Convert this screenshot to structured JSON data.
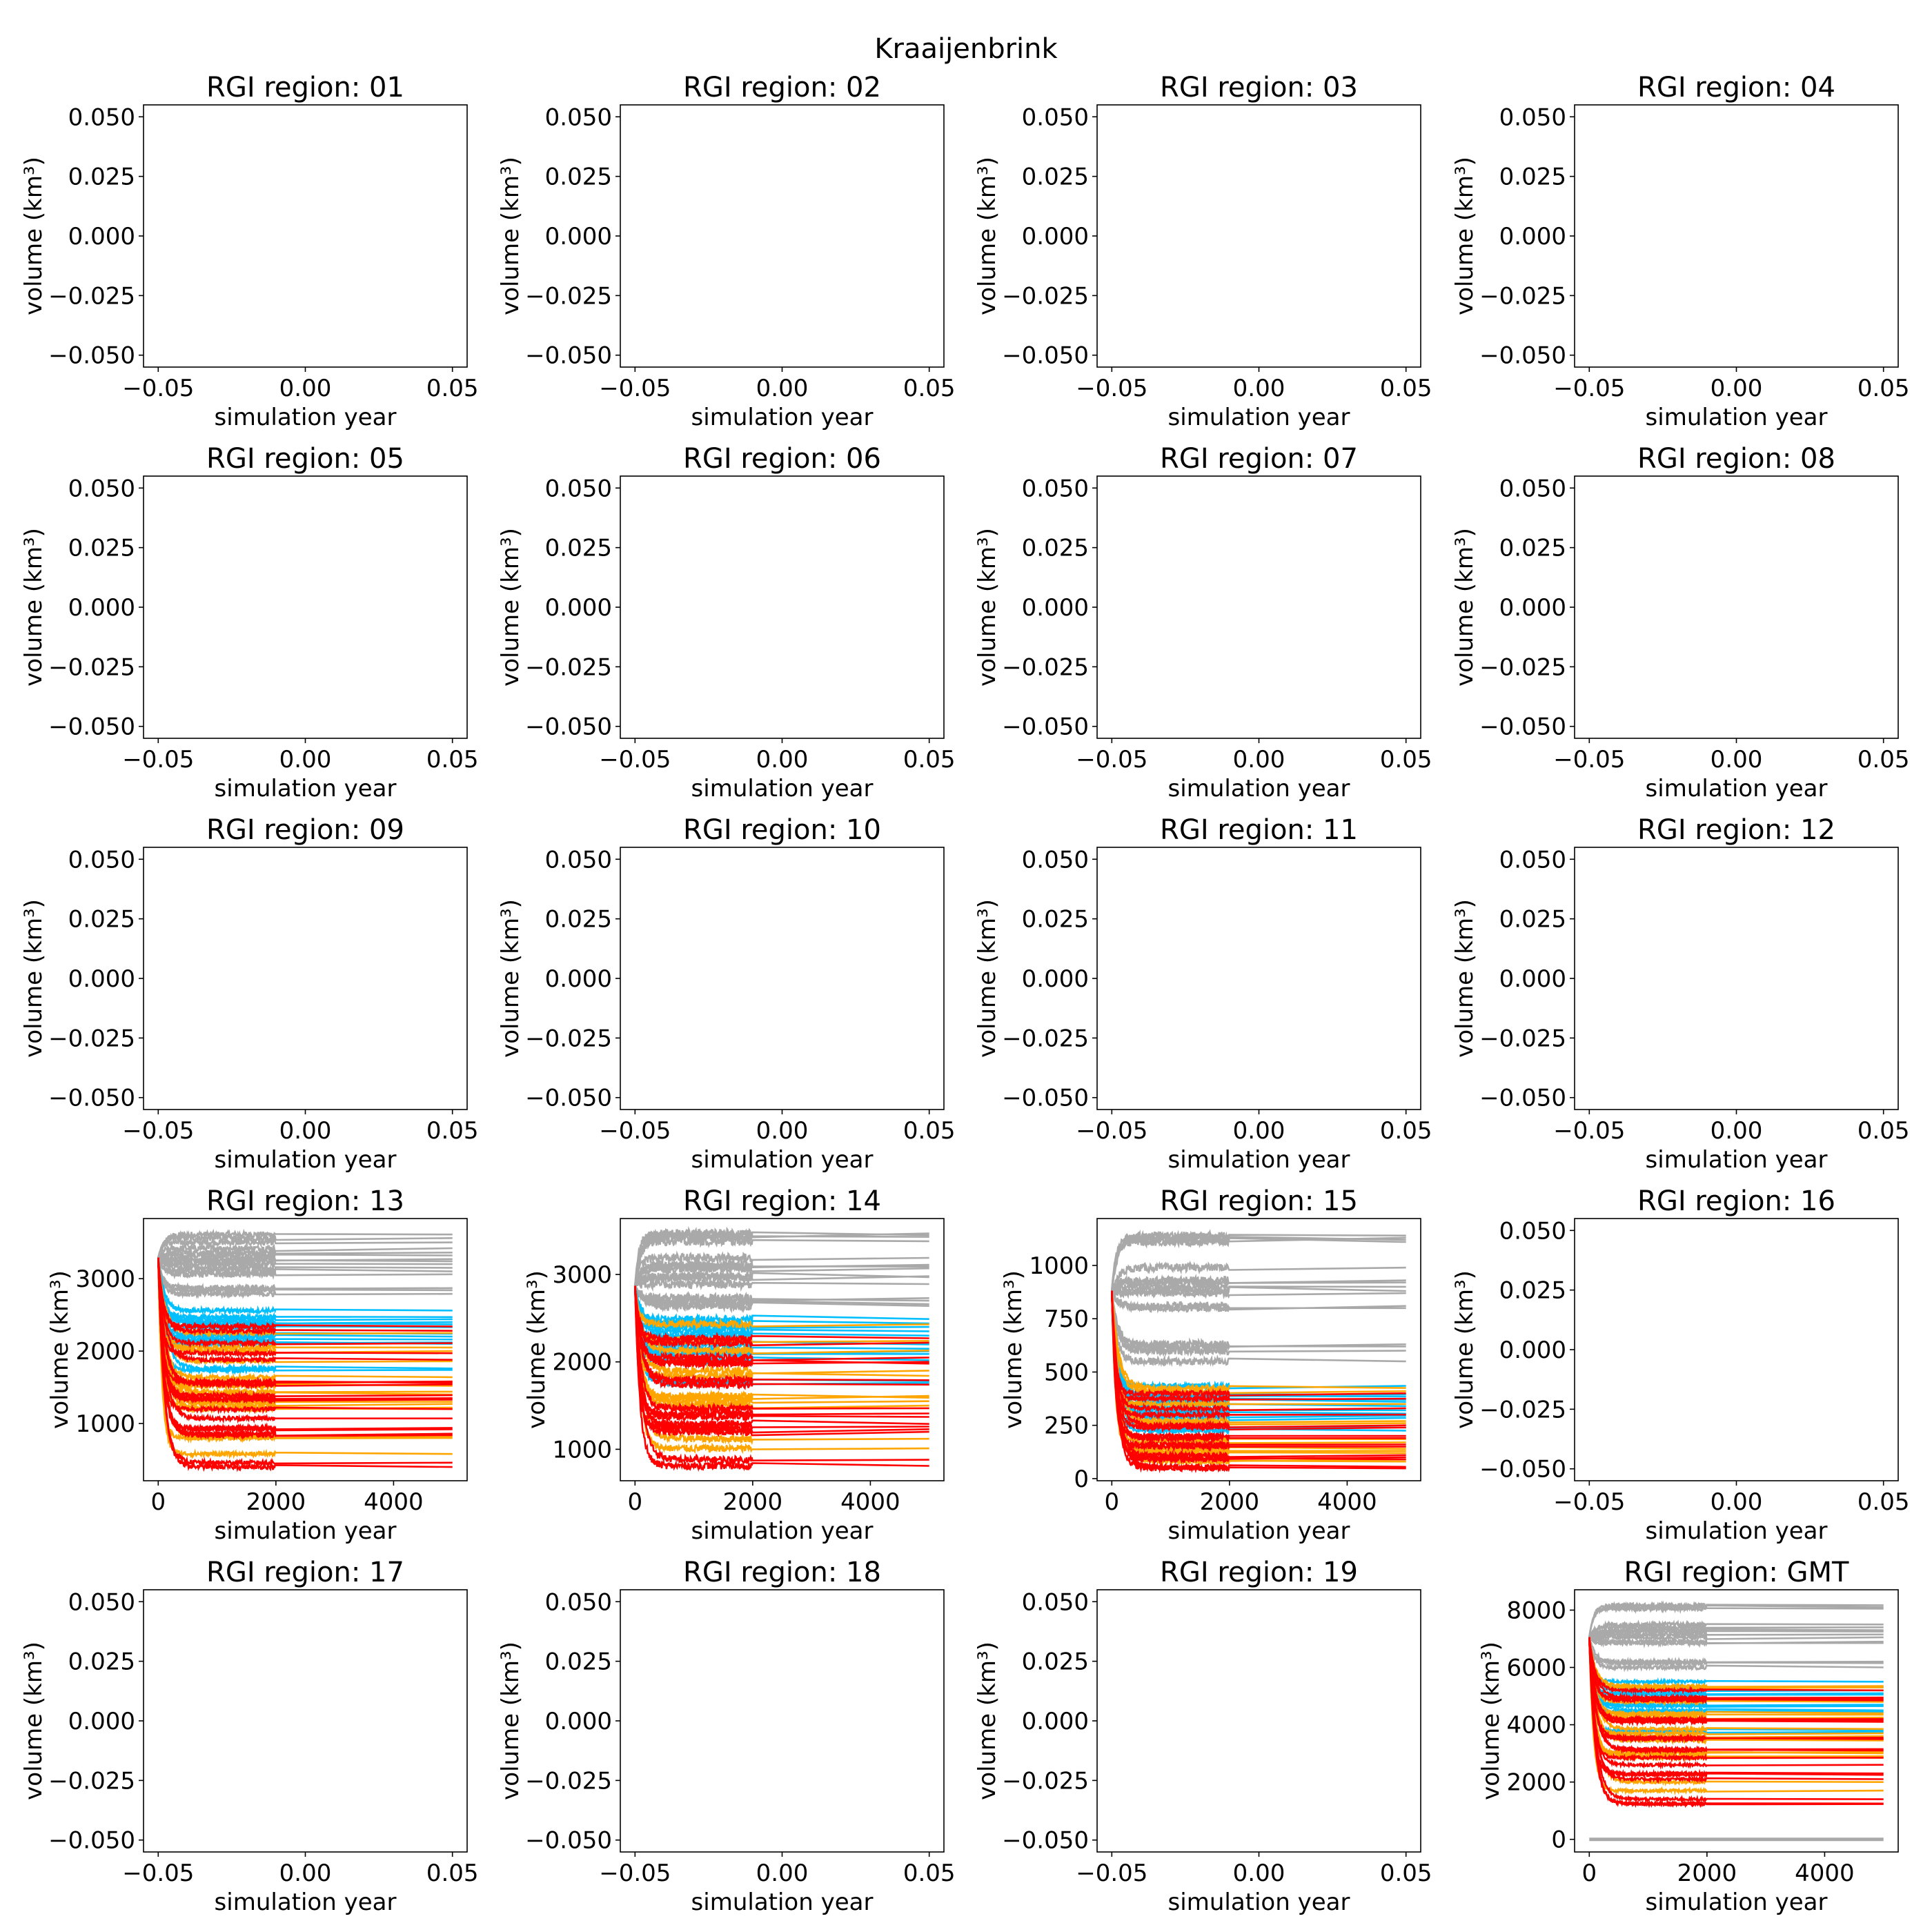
{
  "figure": {
    "title": "Kraaijenbrink",
    "colors": {
      "gray": "#a9a9a9",
      "blue": "#00bfff",
      "orange": "#ffa500",
      "red": "#ff0000",
      "axis": "#000000",
      "background": "#ffffff"
    }
  },
  "chart_data": [
    {
      "type": "line",
      "title": "RGI region: 01",
      "xlabel": "simulation year",
      "ylabel": "volume (km³)",
      "empty": true,
      "xlim": [
        -0.055,
        0.055
      ],
      "ylim": [
        -0.055,
        0.055
      ],
      "xticks": [
        "−0.05",
        "0.00",
        "0.05"
      ],
      "xtick_values": [
        -0.05,
        0,
        0.05
      ],
      "yticks": [
        "−0.050",
        "−0.025",
        "0.000",
        "0.025",
        "0.050"
      ],
      "ytick_values": [
        -0.05,
        -0.025,
        0,
        0.025,
        0.05
      ],
      "series": []
    },
    {
      "type": "line",
      "title": "RGI region: 02",
      "xlabel": "simulation year",
      "ylabel": "volume (km³)",
      "empty": true,
      "xlim": [
        -0.055,
        0.055
      ],
      "ylim": [
        -0.055,
        0.055
      ],
      "xticks": [
        "−0.05",
        "0.00",
        "0.05"
      ],
      "xtick_values": [
        -0.05,
        0,
        0.05
      ],
      "yticks": [
        "−0.050",
        "−0.025",
        "0.000",
        "0.025",
        "0.050"
      ],
      "ytick_values": [
        -0.05,
        -0.025,
        0,
        0.025,
        0.05
      ],
      "series": []
    },
    {
      "type": "line",
      "title": "RGI region: 03",
      "xlabel": "simulation year",
      "ylabel": "volume (km³)",
      "empty": true,
      "xlim": [
        -0.055,
        0.055
      ],
      "ylim": [
        -0.055,
        0.055
      ],
      "xticks": [
        "−0.05",
        "0.00",
        "0.05"
      ],
      "xtick_values": [
        -0.05,
        0,
        0.05
      ],
      "yticks": [
        "−0.050",
        "−0.025",
        "0.000",
        "0.025",
        "0.050"
      ],
      "ytick_values": [
        -0.05,
        -0.025,
        0,
        0.025,
        0.05
      ],
      "series": []
    },
    {
      "type": "line",
      "title": "RGI region: 04",
      "xlabel": "simulation year",
      "ylabel": "volume (km³)",
      "empty": true,
      "xlim": [
        -0.055,
        0.055
      ],
      "ylim": [
        -0.055,
        0.055
      ],
      "xticks": [
        "−0.05",
        "0.00",
        "0.05"
      ],
      "xtick_values": [
        -0.05,
        0,
        0.05
      ],
      "yticks": [
        "−0.050",
        "−0.025",
        "0.000",
        "0.025",
        "0.050"
      ],
      "ytick_values": [
        -0.05,
        -0.025,
        0,
        0.025,
        0.05
      ],
      "series": []
    },
    {
      "type": "line",
      "title": "RGI region: 05",
      "xlabel": "simulation year",
      "ylabel": "volume (km³)",
      "empty": true,
      "xlim": [
        -0.055,
        0.055
      ],
      "ylim": [
        -0.055,
        0.055
      ],
      "xticks": [
        "−0.05",
        "0.00",
        "0.05"
      ],
      "xtick_values": [
        -0.05,
        0,
        0.05
      ],
      "yticks": [
        "−0.050",
        "−0.025",
        "0.000",
        "0.025",
        "0.050"
      ],
      "ytick_values": [
        -0.05,
        -0.025,
        0,
        0.025,
        0.05
      ],
      "series": []
    },
    {
      "type": "line",
      "title": "RGI region: 06",
      "xlabel": "simulation year",
      "ylabel": "volume (km³)",
      "empty": true,
      "xlim": [
        -0.055,
        0.055
      ],
      "ylim": [
        -0.055,
        0.055
      ],
      "xticks": [
        "−0.05",
        "0.00",
        "0.05"
      ],
      "xtick_values": [
        -0.05,
        0,
        0.05
      ],
      "yticks": [
        "−0.050",
        "−0.025",
        "0.000",
        "0.025",
        "0.050"
      ],
      "ytick_values": [
        -0.05,
        -0.025,
        0,
        0.025,
        0.05
      ],
      "series": []
    },
    {
      "type": "line",
      "title": "RGI region: 07",
      "xlabel": "simulation year",
      "ylabel": "volume (km³)",
      "empty": true,
      "xlim": [
        -0.055,
        0.055
      ],
      "ylim": [
        -0.055,
        0.055
      ],
      "xticks": [
        "−0.05",
        "0.00",
        "0.05"
      ],
      "xtick_values": [
        -0.05,
        0,
        0.05
      ],
      "yticks": [
        "−0.050",
        "−0.025",
        "0.000",
        "0.025",
        "0.050"
      ],
      "ytick_values": [
        -0.05,
        -0.025,
        0,
        0.025,
        0.05
      ],
      "series": []
    },
    {
      "type": "line",
      "title": "RGI region: 08",
      "xlabel": "simulation year",
      "ylabel": "volume (km³)",
      "empty": true,
      "xlim": [
        -0.055,
        0.055
      ],
      "ylim": [
        -0.055,
        0.055
      ],
      "xticks": [
        "−0.05",
        "0.00",
        "0.05"
      ],
      "xtick_values": [
        -0.05,
        0,
        0.05
      ],
      "yticks": [
        "−0.050",
        "−0.025",
        "0.000",
        "0.025",
        "0.050"
      ],
      "ytick_values": [
        -0.05,
        -0.025,
        0,
        0.025,
        0.05
      ],
      "series": []
    },
    {
      "type": "line",
      "title": "RGI region: 09",
      "xlabel": "simulation year",
      "ylabel": "volume (km³)",
      "empty": true,
      "xlim": [
        -0.055,
        0.055
      ],
      "ylim": [
        -0.055,
        0.055
      ],
      "xticks": [
        "−0.05",
        "0.00",
        "0.05"
      ],
      "xtick_values": [
        -0.05,
        0,
        0.05
      ],
      "yticks": [
        "−0.050",
        "−0.025",
        "0.000",
        "0.025",
        "0.050"
      ],
      "ytick_values": [
        -0.05,
        -0.025,
        0,
        0.025,
        0.05
      ],
      "series": []
    },
    {
      "type": "line",
      "title": "RGI region: 10",
      "xlabel": "simulation year",
      "ylabel": "volume (km³)",
      "empty": true,
      "xlim": [
        -0.055,
        0.055
      ],
      "ylim": [
        -0.055,
        0.055
      ],
      "xticks": [
        "−0.05",
        "0.00",
        "0.05"
      ],
      "xtick_values": [
        -0.05,
        0,
        0.05
      ],
      "yticks": [
        "−0.050",
        "−0.025",
        "0.000",
        "0.025",
        "0.050"
      ],
      "ytick_values": [
        -0.05,
        -0.025,
        0,
        0.025,
        0.05
      ],
      "series": []
    },
    {
      "type": "line",
      "title": "RGI region: 11",
      "xlabel": "simulation year",
      "ylabel": "volume (km³)",
      "empty": true,
      "xlim": [
        -0.055,
        0.055
      ],
      "ylim": [
        -0.055,
        0.055
      ],
      "xticks": [
        "−0.05",
        "0.00",
        "0.05"
      ],
      "xtick_values": [
        -0.05,
        0,
        0.05
      ],
      "yticks": [
        "−0.050",
        "−0.025",
        "0.000",
        "0.025",
        "0.050"
      ],
      "ytick_values": [
        -0.05,
        -0.025,
        0,
        0.025,
        0.05
      ],
      "series": []
    },
    {
      "type": "line",
      "title": "RGI region: 12",
      "xlabel": "simulation year",
      "ylabel": "volume (km³)",
      "empty": true,
      "xlim": [
        -0.055,
        0.055
      ],
      "ylim": [
        -0.055,
        0.055
      ],
      "xticks": [
        "−0.05",
        "0.00",
        "0.05"
      ],
      "xtick_values": [
        -0.05,
        0,
        0.05
      ],
      "yticks": [
        "−0.050",
        "−0.025",
        "0.000",
        "0.025",
        "0.050"
      ],
      "ytick_values": [
        -0.05,
        -0.025,
        0,
        0.025,
        0.05
      ],
      "series": []
    },
    {
      "type": "line",
      "title": "RGI region: 13",
      "xlabel": "simulation year",
      "ylabel": "volume (km³)",
      "empty": false,
      "xlim": [
        -250,
        5250
      ],
      "ylim": [
        210,
        3830
      ],
      "xticks": [
        "0",
        "2000",
        "4000"
      ],
      "xtick_values": [
        0,
        2000,
        4000
      ],
      "yticks": [
        "1000",
        "2000",
        "3000"
      ],
      "ytick_values": [
        1000,
        2000,
        3000
      ],
      "start_value": 3290,
      "noisy_until_year": 2000,
      "end_year": 5000,
      "series": [
        {
          "color": "gray",
          "noise": 40,
          "final_values": [
            3610,
            3560,
            3500,
            3420,
            3360,
            3320,
            3270,
            3240,
            3200,
            3150,
            3100,
            3060,
            2870,
            2840,
            2790
          ]
        },
        {
          "color": "blue",
          "noise": 30,
          "final_values": [
            2560,
            2470,
            2440,
            2400,
            2370,
            2330,
            2240,
            2200,
            2160,
            2120,
            2100,
            1760,
            1740
          ]
        },
        {
          "color": "orange",
          "noise": 30,
          "final_values": [
            2250,
            2050,
            2000,
            1860,
            1640,
            1580,
            1520,
            1440,
            1400,
            1300,
            1270,
            1220,
            1200,
            820,
            800,
            580
          ]
        },
        {
          "color": "red",
          "noise": 30,
          "final_values": [
            2340,
            2280,
            2110,
            1970,
            1880,
            1580,
            1560,
            1540,
            1390,
            1350,
            1330,
            1200,
            1070,
            940,
            920,
            860,
            840,
            460,
            400
          ]
        }
      ]
    },
    {
      "type": "line",
      "title": "RGI region: 14",
      "xlabel": "simulation year",
      "ylabel": "volume (km³)",
      "empty": false,
      "xlim": [
        -250,
        5250
      ],
      "ylim": [
        640,
        3640
      ],
      "xticks": [
        "0",
        "2000",
        "4000"
      ],
      "xtick_values": [
        0,
        2000,
        4000
      ],
      "yticks": [
        "1000",
        "2000",
        "3000"
      ],
      "ytick_values": [
        1000,
        2000,
        3000
      ],
      "start_value": 2870,
      "noisy_until_year": 2000,
      "end_year": 5000,
      "series": [
        {
          "color": "gray",
          "noise": 50,
          "final_values": [
            3470,
            3450,
            3430,
            3380,
            3190,
            3110,
            3090,
            3070,
            2980,
            2970,
            2890,
            2730,
            2700,
            2660,
            2640
          ]
        },
        {
          "color": "blue",
          "noise": 40,
          "final_values": [
            2490,
            2440,
            2400,
            2350,
            2300,
            2200,
            2150,
            2120,
            2090,
            2020,
            1780,
            1760
          ]
        },
        {
          "color": "orange",
          "noise": 40,
          "final_values": [
            2430,
            2240,
            2130,
            1900,
            1840,
            1610,
            1590,
            1550,
            1500,
            1120,
            1010
          ]
        },
        {
          "color": "red",
          "noise": 40,
          "final_values": [
            2270,
            2220,
            2050,
            2000,
            1980,
            1790,
            1740,
            1470,
            1410,
            1370,
            1290,
            1260,
            1230,
            1200,
            880,
            810
          ]
        }
      ]
    },
    {
      "type": "line",
      "title": "RGI region: 15",
      "xlabel": "simulation year",
      "ylabel": "volume (km³)",
      "empty": false,
      "xlim": [
        -250,
        5250
      ],
      "ylim": [
        -10,
        1220
      ],
      "xticks": [
        "0",
        "2000",
        "4000"
      ],
      "xtick_values": [
        0,
        2000,
        4000
      ],
      "yticks": [
        "0",
        "250",
        "500",
        "750",
        "1000"
      ],
      "ytick_values": [
        0,
        250,
        500,
        750,
        1000
      ],
      "start_value": 881,
      "noisy_until_year": 2000,
      "end_year": 5000,
      "series": [
        {
          "color": "gray",
          "noise": 18,
          "final_values": [
            1140,
            1130,
            1120,
            1110,
            990,
            930,
            920,
            900,
            880,
            870,
            810,
            800,
            630,
            620,
            600,
            550
          ]
        },
        {
          "color": "blue",
          "noise": 12,
          "final_values": [
            435,
            395,
            385,
            370,
            360,
            340,
            320,
            305,
            295,
            285,
            240,
            225
          ]
        },
        {
          "color": "orange",
          "noise": 12,
          "final_values": [
            425,
            410,
            350,
            270,
            260,
            185,
            170,
            140,
            130,
            120,
            90,
            80
          ]
        },
        {
          "color": "red",
          "noise": 12,
          "final_values": [
            400,
            375,
            330,
            300,
            250,
            240,
            200,
            190,
            160,
            150,
            110,
            100,
            90,
            55,
            48
          ]
        }
      ]
    },
    {
      "type": "line",
      "title": "RGI region: 16",
      "xlabel": "simulation year",
      "ylabel": "volume (km³)",
      "empty": true,
      "xlim": [
        -0.055,
        0.055
      ],
      "ylim": [
        -0.055,
        0.055
      ],
      "xticks": [
        "−0.05",
        "0.00",
        "0.05"
      ],
      "xtick_values": [
        -0.05,
        0,
        0.05
      ],
      "yticks": [
        "−0.050",
        "−0.025",
        "0.000",
        "0.025",
        "0.050"
      ],
      "ytick_values": [
        -0.05,
        -0.025,
        0,
        0.025,
        0.05
      ],
      "series": []
    },
    {
      "type": "line",
      "title": "RGI region: 17",
      "xlabel": "simulation year",
      "ylabel": "volume (km³)",
      "empty": true,
      "xlim": [
        -0.055,
        0.055
      ],
      "ylim": [
        -0.055,
        0.055
      ],
      "xticks": [
        "−0.05",
        "0.00",
        "0.05"
      ],
      "xtick_values": [
        -0.05,
        0,
        0.05
      ],
      "yticks": [
        "−0.050",
        "−0.025",
        "0.000",
        "0.025",
        "0.050"
      ],
      "ytick_values": [
        -0.05,
        -0.025,
        0,
        0.025,
        0.05
      ],
      "series": []
    },
    {
      "type": "line",
      "title": "RGI region: 18",
      "xlabel": "simulation year",
      "ylabel": "volume (km³)",
      "empty": true,
      "xlim": [
        -0.055,
        0.055
      ],
      "ylim": [
        -0.055,
        0.055
      ],
      "xticks": [
        "−0.05",
        "0.00",
        "0.05"
      ],
      "xtick_values": [
        -0.05,
        0,
        0.05
      ],
      "yticks": [
        "−0.050",
        "−0.025",
        "0.000",
        "0.025",
        "0.050"
      ],
      "ytick_values": [
        -0.05,
        -0.025,
        0,
        0.025,
        0.05
      ],
      "series": []
    },
    {
      "type": "line",
      "title": "RGI region: 19",
      "xlabel": "simulation year",
      "ylabel": "volume (km³)",
      "empty": true,
      "xlim": [
        -0.055,
        0.055
      ],
      "ylim": [
        -0.055,
        0.055
      ],
      "xticks": [
        "−0.05",
        "0.00",
        "0.05"
      ],
      "xtick_values": [
        -0.05,
        0,
        0.05
      ],
      "yticks": [
        "−0.050",
        "−0.025",
        "0.000",
        "0.025",
        "0.050"
      ],
      "ytick_values": [
        -0.05,
        -0.025,
        0,
        0.025,
        0.05
      ],
      "series": []
    },
    {
      "type": "line",
      "title": "RGI region: GMT",
      "xlabel": "simulation year",
      "ylabel": "volume (km³)",
      "empty": false,
      "xlim": [
        -250,
        5250
      ],
      "ylim": [
        -440,
        8710
      ],
      "xticks": [
        "0",
        "2000",
        "4000"
      ],
      "xtick_values": [
        0,
        2000,
        4000
      ],
      "yticks": [
        "0",
        "2000",
        "4000",
        "6000",
        "8000"
      ],
      "ytick_values": [
        0,
        2000,
        4000,
        6000,
        8000
      ],
      "start_value": 7050,
      "noisy_until_year": 2000,
      "end_year": 5000,
      "extra_flat_lines": [
        {
          "color": "gray",
          "value": 0
        }
      ],
      "series": [
        {
          "color": "gray",
          "noise": 70,
          "final_values": [
            8170,
            8100,
            8050,
            7500,
            7400,
            7300,
            7250,
            7150,
            7050,
            6900,
            6850,
            6200,
            6150,
            6000
          ]
        },
        {
          "color": "blue",
          "noise": 50,
          "final_values": [
            5500,
            5300,
            5200,
            5100,
            5050,
            4700,
            4650,
            4500,
            4450,
            3800,
            3750
          ]
        },
        {
          "color": "orange",
          "noise": 50,
          "final_values": [
            5350,
            5300,
            4800,
            4400,
            4350,
            4250,
            3850,
            3700,
            3600,
            3500,
            3450,
            3050,
            3000,
            2900,
            2850,
            2000,
            1700
          ]
        },
        {
          "color": "red",
          "noise": 50,
          "final_values": [
            5200,
            4950,
            4900,
            4850,
            4200,
            4150,
            4100,
            3550,
            3500,
            3150,
            3100,
            2850,
            2600,
            2300,
            2250,
            2100,
            1400,
            1250,
            1230
          ]
        }
      ]
    }
  ]
}
